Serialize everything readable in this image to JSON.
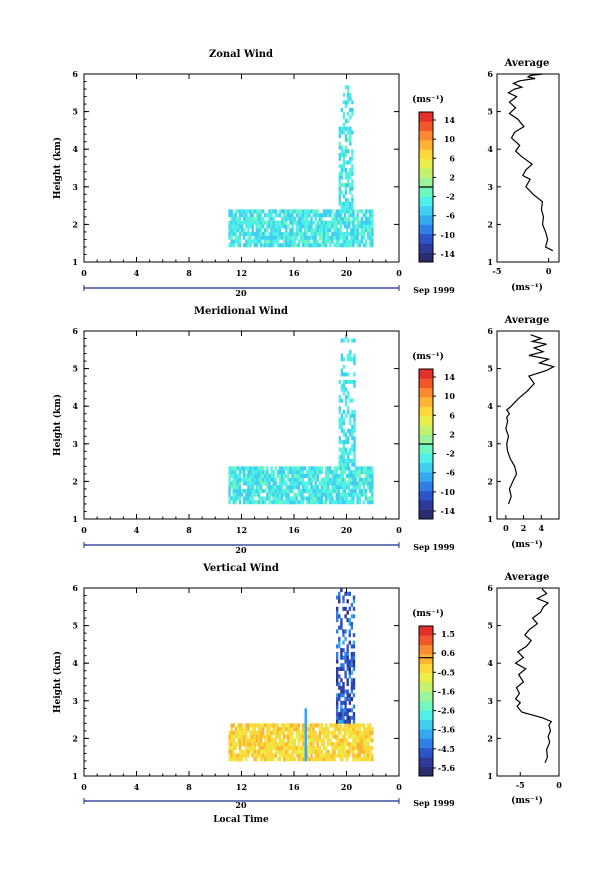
{
  "figure": {
    "xlabel": "Local Time",
    "date_label": "20",
    "month_label": "Sep 1999"
  },
  "chart_data": [
    {
      "type": "heatmap",
      "title": "Zonal Wind",
      "ylabel": "Height (km)",
      "xlabel": "",
      "xlim": [
        0,
        24
      ],
      "ylim": [
        1,
        6
      ],
      "xticks": [
        "0",
        "4",
        "8",
        "12",
        "16",
        "20",
        "0"
      ],
      "yticks": [
        "1",
        "2",
        "3",
        "4",
        "5",
        "6"
      ],
      "colorbar": {
        "unit": "(ms⁻¹)",
        "ticks": [
          "14",
          "10",
          "6",
          "2",
          "-2",
          "-6",
          "-10",
          "-14"
        ],
        "range": [
          -14,
          14
        ]
      },
      "data": {
        "time_range": [
          11,
          22
        ],
        "height_range": [
          1.4,
          2.4
        ],
        "convective_time_range": [
          19.4,
          20.4
        ],
        "convective_height_top": 5.8,
        "typical_value": -3
      }
    },
    {
      "type": "line",
      "title": "Average",
      "xlabel": "(ms⁻¹)",
      "ylabel": "",
      "xlim": [
        -5,
        1
      ],
      "ylim": [
        1,
        6
      ],
      "xticks": [
        "-5",
        "0"
      ],
      "yticks": [
        "1",
        "2",
        "3",
        "4",
        "5",
        "6"
      ],
      "x": [
        0.4,
        -0.3,
        -0.1,
        -0.3,
        -0.6,
        -0.5,
        -0.7,
        -0.6,
        -1.5,
        -2.2,
        -1.8,
        -2.5,
        -2.2,
        -1.6,
        -2.6,
        -3.2,
        -2.8,
        -3.6,
        -3.3,
        -2.4,
        -3.0,
        -3.8,
        -3.2,
        -3.8,
        -3.1,
        -3.9,
        -3.3,
        -2.6,
        -3.4,
        -2.8,
        -1.3,
        -2.0,
        -1.8,
        -0.6
      ],
      "y": [
        1.3,
        1.4,
        1.6,
        1.8,
        2.0,
        2.2,
        2.4,
        2.6,
        2.8,
        3.0,
        3.2,
        3.3,
        3.45,
        3.6,
        3.8,
        3.95,
        4.1,
        4.3,
        4.45,
        4.6,
        4.8,
        4.95,
        5.1,
        5.25,
        5.4,
        5.5,
        5.6,
        5.65,
        5.75,
        5.82,
        5.88,
        5.92,
        5.96,
        6.0
      ]
    },
    {
      "type": "heatmap",
      "title": "Meridional Wind",
      "ylabel": "Height (km)",
      "xlabel": "",
      "xlim": [
        0,
        24
      ],
      "ylim": [
        1,
        6
      ],
      "xticks": [
        "0",
        "4",
        "8",
        "12",
        "16",
        "20",
        "0"
      ],
      "yticks": [
        "1",
        "2",
        "3",
        "4",
        "5",
        "6"
      ],
      "colorbar": {
        "unit": "(ms⁻¹)",
        "ticks": [
          "14",
          "10",
          "6",
          "2",
          "-2",
          "-6",
          "-10",
          "-14"
        ],
        "range": [
          -14,
          14
        ]
      },
      "data": {
        "time_range": [
          11,
          22
        ],
        "height_range": [
          1.4,
          2.4
        ],
        "convective_time_range": [
          19.4,
          20.6
        ],
        "convective_height_top": 5.8,
        "typical_value": -3
      }
    },
    {
      "type": "line",
      "title": "Average",
      "xlabel": "(ms⁻¹)",
      "ylabel": "",
      "xlim": [
        -1,
        6
      ],
      "ylim": [
        1,
        6
      ],
      "xticks": [
        "0",
        "2",
        "4"
      ],
      "yticks": [
        "1",
        "2",
        "3",
        "4",
        "5",
        "6"
      ],
      "x": [
        0.3,
        0.6,
        0.4,
        0.8,
        1.2,
        1.0,
        0.5,
        0.2,
        0.1,
        0.3,
        0.0,
        0.2,
        0.1,
        0.4,
        0.1,
        0.6,
        1.4,
        2.4,
        3.2,
        2.6,
        4.6,
        5.4,
        3.8,
        4.8,
        2.6,
        4.2,
        3.2,
        4.6,
        3.0,
        4.0,
        2.8
      ],
      "y": [
        1.4,
        1.6,
        1.8,
        2.0,
        2.2,
        2.4,
        2.6,
        2.8,
        3.0,
        3.2,
        3.4,
        3.6,
        3.7,
        3.8,
        3.9,
        4.0,
        4.2,
        4.4,
        4.6,
        4.8,
        4.95,
        5.05,
        5.15,
        5.25,
        5.35,
        5.45,
        5.55,
        5.65,
        5.72,
        5.8,
        5.9
      ]
    },
    {
      "type": "heatmap",
      "title": "Vertical Wind",
      "ylabel": "Height (km)",
      "xlabel": "Local Time",
      "xlim": [
        0,
        24
      ],
      "ylim": [
        1,
        6
      ],
      "xticks": [
        "0",
        "4",
        "8",
        "12",
        "16",
        "20",
        "0"
      ],
      "yticks": [
        "1",
        "2",
        "3",
        "4",
        "5",
        "6"
      ],
      "colorbar": {
        "unit": "(ms⁻¹)",
        "ticks": [
          "1.5",
          "0.6",
          "-0.5",
          "-1.6",
          "-2.6",
          "-3.6",
          "-4.5",
          "-5.6"
        ],
        "range": [
          -5.6,
          1.5
        ]
      },
      "data": {
        "time_range": [
          11,
          22
        ],
        "height_range": [
          1.4,
          2.4
        ],
        "convective_time_range": [
          19.2,
          20.6
        ],
        "convective_height_top": 5.9,
        "typical_value": -0.5
      }
    },
    {
      "type": "line",
      "title": "Average",
      "xlabel": "(ms⁻¹)",
      "ylabel": "",
      "xlim": [
        -8,
        0
      ],
      "ylim": [
        1,
        6
      ],
      "xticks": [
        "-5",
        "0"
      ],
      "yticks": [
        "1",
        "2",
        "3",
        "4",
        "5",
        "6"
      ],
      "x": [
        -1.8,
        -1.5,
        -1.6,
        -1.2,
        -1.4,
        -1.1,
        -1.3,
        -1.0,
        -2.2,
        -4.8,
        -5.4,
        -5.0,
        -5.6,
        -5.1,
        -5.5,
        -4.6,
        -5.2,
        -4.3,
        -5.6,
        -4.6,
        -5.3,
        -4.2,
        -3.6,
        -4.4,
        -3.8,
        -2.8,
        -3.4,
        -2.4,
        -2.0,
        -1.4,
        -2.8,
        -1.6,
        -2.2
      ],
      "y": [
        1.35,
        1.5,
        1.7,
        1.9,
        2.05,
        2.2,
        2.35,
        2.45,
        2.55,
        2.7,
        2.85,
        2.95,
        3.05,
        3.2,
        3.35,
        3.5,
        3.7,
        3.85,
        4.0,
        4.15,
        4.3,
        4.45,
        4.6,
        4.75,
        4.9,
        5.05,
        5.2,
        5.35,
        5.5,
        5.6,
        5.72,
        5.85,
        5.98
      ]
    }
  ]
}
